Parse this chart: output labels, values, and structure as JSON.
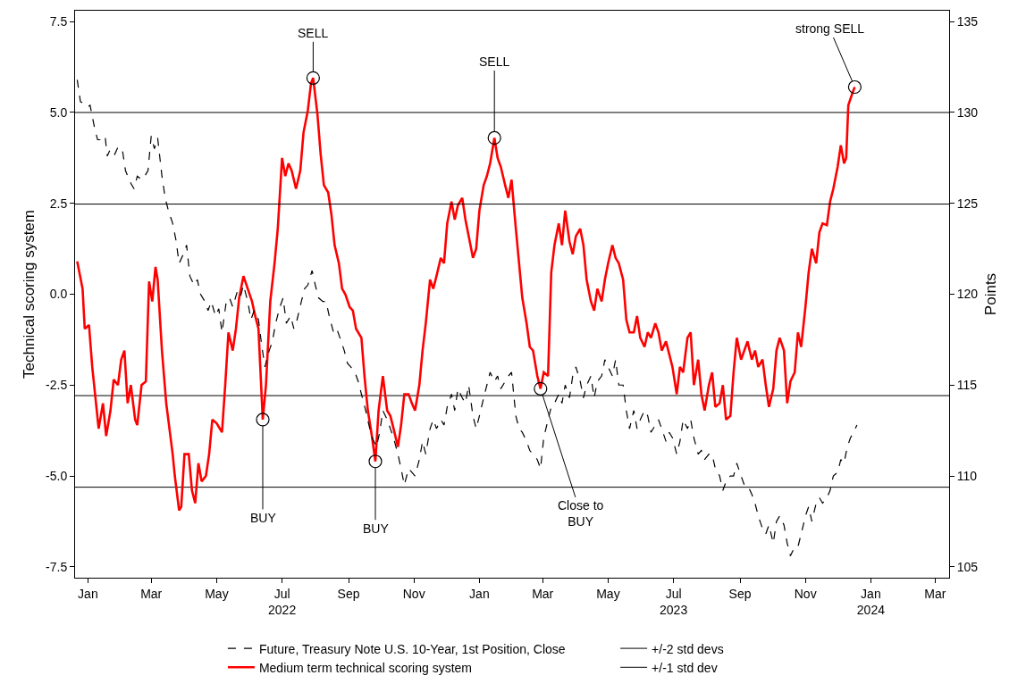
{
  "chart_data": {
    "type": "line",
    "ylabel": "Technical scoring system",
    "y2label": "Points",
    "xlim": [
      "2021-12-20",
      "2024-03-14"
    ],
    "xticks": [
      {
        "value": "2022-01-01",
        "label": "Jan"
      },
      {
        "value": "2022-03-01",
        "label": "Mar"
      },
      {
        "value": "2022-05-01",
        "label": "May"
      },
      {
        "value": "2022-07-01",
        "label": "Jul\n2022"
      },
      {
        "value": "2022-09-01",
        "label": "Sep"
      },
      {
        "value": "2022-11-01",
        "label": "Nov"
      },
      {
        "value": "2023-01-01",
        "label": "Jan"
      },
      {
        "value": "2023-03-01",
        "label": "Mar"
      },
      {
        "value": "2023-05-01",
        "label": "May"
      },
      {
        "value": "2023-07-01",
        "label": "Jul\n2023"
      },
      {
        "value": "2023-09-01",
        "label": "Sep"
      },
      {
        "value": "2023-11-01",
        "label": "Nov"
      },
      {
        "value": "2024-01-01",
        "label": "Jan\n2024"
      },
      {
        "value": "2024-03-01",
        "label": "Mar"
      }
    ],
    "ylim": [
      -7.8,
      7.8
    ],
    "yticks": [
      {
        "value": -7.5,
        "label": "-7.5"
      },
      {
        "value": -5,
        "label": "-5.0"
      },
      {
        "value": -2.5,
        "label": "-2.5"
      },
      {
        "value": 0,
        "label": "0.0"
      },
      {
        "value": 2.5,
        "label": "2.5"
      },
      {
        "value": 5,
        "label": "5.0"
      },
      {
        "value": 7.5,
        "label": "7.5"
      }
    ],
    "y2lim": [
      104.4,
      135.6
    ],
    "y2ticks": [
      105,
      110,
      115,
      120,
      125,
      130,
      135
    ],
    "grid": false,
    "legend": "bottom",
    "series": [
      {
        "name": "Future, Treasury Note U.S. 10-Year, 1st Position, Close",
        "color": "#000000",
        "axis": "y2",
        "line_style": "dashed",
        "x": [
          "2021-12-22",
          "2021-12-25",
          "2021-12-28",
          "2022-01-01",
          "2022-01-03",
          "2022-01-07",
          "2022-01-10",
          "2022-01-13",
          "2022-01-17",
          "2022-01-19",
          "2022-01-22",
          "2022-01-26",
          "2022-01-29",
          "2022-02-02",
          "2022-02-05",
          "2022-02-10",
          "2022-02-13",
          "2022-02-16",
          "2022-02-20",
          "2022-02-23",
          "2022-02-26",
          "2022-03-01",
          "2022-03-04",
          "2022-03-07",
          "2022-03-11",
          "2022-03-14",
          "2022-03-17",
          "2022-03-21",
          "2022-03-24",
          "2022-03-27",
          "2022-03-31",
          "2022-04-03",
          "2022-04-06",
          "2022-04-10",
          "2022-04-13",
          "2022-04-16",
          "2022-04-20",
          "2022-04-23",
          "2022-04-26",
          "2022-04-30",
          "2022-05-03",
          "2022-05-06",
          "2022-05-10",
          "2022-05-13",
          "2022-05-16",
          "2022-05-20",
          "2022-05-23",
          "2022-05-26",
          "2022-05-30",
          "2022-06-02",
          "2022-06-05",
          "2022-06-09",
          "2022-06-12",
          "2022-06-15",
          "2022-06-19",
          "2022-06-22",
          "2022-06-25",
          "2022-06-29",
          "2022-07-02",
          "2022-07-05",
          "2022-07-09",
          "2022-07-12",
          "2022-07-15",
          "2022-07-19",
          "2022-07-22",
          "2022-07-25",
          "2022-07-29",
          "2022-08-01",
          "2022-08-04",
          "2022-08-08",
          "2022-08-11",
          "2022-08-14",
          "2022-08-18",
          "2022-08-21",
          "2022-08-24",
          "2022-08-28",
          "2022-08-31",
          "2022-09-03",
          "2022-09-07",
          "2022-09-10",
          "2022-09-13",
          "2022-09-17",
          "2022-09-20",
          "2022-09-23",
          "2022-09-27",
          "2022-09-30",
          "2022-10-03",
          "2022-10-07",
          "2022-10-10",
          "2022-10-13",
          "2022-10-17",
          "2022-10-20",
          "2022-10-23",
          "2022-10-27",
          "2022-10-30",
          "2022-11-02",
          "2022-11-06",
          "2022-11-09",
          "2022-11-12",
          "2022-11-16",
          "2022-11-19",
          "2022-11-22",
          "2022-11-26",
          "2022-11-29",
          "2022-12-02",
          "2022-12-06",
          "2022-12-09",
          "2022-12-12",
          "2022-12-16",
          "2022-12-19",
          "2022-12-22",
          "2022-12-26",
          "2022-12-29",
          "2023-01-01",
          "2023-01-05",
          "2023-01-08",
          "2023-01-11",
          "2023-01-15",
          "2023-01-18",
          "2023-01-21",
          "2023-01-25",
          "2023-01-28",
          "2023-01-31",
          "2023-02-04",
          "2023-02-07",
          "2023-02-10",
          "2023-02-14",
          "2023-02-17",
          "2023-02-20",
          "2023-02-24",
          "2023-02-27",
          "2023-03-02",
          "2023-03-06",
          "2023-03-09",
          "2023-03-12",
          "2023-03-16",
          "2023-03-19",
          "2023-03-22",
          "2023-03-26",
          "2023-03-29",
          "2023-04-01",
          "2023-04-05",
          "2023-04-08",
          "2023-04-11",
          "2023-04-15",
          "2023-04-18",
          "2023-04-21",
          "2023-04-25",
          "2023-04-28",
          "2023-05-01",
          "2023-05-05",
          "2023-05-08",
          "2023-05-11",
          "2023-05-15",
          "2023-05-18",
          "2023-05-21",
          "2023-05-25",
          "2023-05-28",
          "2023-05-31",
          "2023-06-04",
          "2023-06-07",
          "2023-06-10",
          "2023-06-14",
          "2023-06-17",
          "2023-06-20",
          "2023-06-24",
          "2023-06-27",
          "2023-06-30",
          "2023-07-04",
          "2023-07-07",
          "2023-07-10",
          "2023-07-14",
          "2023-07-17",
          "2023-07-20",
          "2023-07-24",
          "2023-07-27",
          "2023-07-30",
          "2023-08-03",
          "2023-08-06",
          "2023-08-09",
          "2023-08-13",
          "2023-08-16",
          "2023-08-19",
          "2023-08-23",
          "2023-08-26",
          "2023-08-29",
          "2023-09-02",
          "2023-09-05",
          "2023-09-08",
          "2023-09-12",
          "2023-09-15",
          "2023-09-18",
          "2023-09-22",
          "2023-09-25",
          "2023-09-28",
          "2023-10-02",
          "2023-10-05",
          "2023-10-08",
          "2023-10-12",
          "2023-10-15",
          "2023-10-18",
          "2023-10-22",
          "2023-10-25",
          "2023-10-28",
          "2023-11-01",
          "2023-11-04",
          "2023-11-07",
          "2023-11-11",
          "2023-11-14",
          "2023-11-17",
          "2023-11-21",
          "2023-11-24",
          "2023-11-27",
          "2023-12-01",
          "2023-12-04",
          "2023-12-07",
          "2023-12-10",
          "2023-12-13",
          "2023-12-16",
          "2023-12-19"
        ],
        "values": [
          131.8,
          130.6,
          130.5,
          130.3,
          130.4,
          129.2,
          128.5,
          128.5,
          128.7,
          127.6,
          128.0,
          127.7,
          128.1,
          128.0,
          126.8,
          126.1,
          125.8,
          126.5,
          126.3,
          126.5,
          126.8,
          128.7,
          128.0,
          128.6,
          126.5,
          125.3,
          124.6,
          123.9,
          123.0,
          121.7,
          122.2,
          122.7,
          121.0,
          120.5,
          120.8,
          120.0,
          119.6,
          119.1,
          119.6,
          118.8,
          119.2,
          117.9,
          119.6,
          119.8,
          119.3,
          120.1,
          119.8,
          120.5,
          119.6,
          118.6,
          119.1,
          118.6,
          117.2,
          116.0,
          116.9,
          117.4,
          118.4,
          119.3,
          119.8,
          118.4,
          118.8,
          118.1,
          118.6,
          119.6,
          120.3,
          120.5,
          121.3,
          120.5,
          119.8,
          119.6,
          119.6,
          118.8,
          117.9,
          118.1,
          117.6,
          116.9,
          116.2,
          116.0,
          115.7,
          115.2,
          114.5,
          113.6,
          112.8,
          112.1,
          111.6,
          112.4,
          113.6,
          113.1,
          112.6,
          112.1,
          111.2,
          110.4,
          109.5,
          110.4,
          110.2,
          110.0,
          110.9,
          111.9,
          111.2,
          112.6,
          113.1,
          112.6,
          113.1,
          112.8,
          113.8,
          114.5,
          113.6,
          114.8,
          114.3,
          114.0,
          115.0,
          113.3,
          112.6,
          113.3,
          114.3,
          115.0,
          115.7,
          115.2,
          115.5,
          114.8,
          115.2,
          115.5,
          115.7,
          113.3,
          112.6,
          112.4,
          111.9,
          111.4,
          111.2,
          110.9,
          110.4,
          112.1,
          113.1,
          113.8,
          114.0,
          114.5,
          114.0,
          115.0,
          114.3,
          115.5,
          116.0,
          115.2,
          114.3,
          115.0,
          115.5,
          114.3,
          115.2,
          115.5,
          116.4,
          116.0,
          115.5,
          116.4,
          115.0,
          115.0,
          113.6,
          112.6,
          113.6,
          112.6,
          113.1,
          113.6,
          113.3,
          112.4,
          112.8,
          113.1,
          112.6,
          111.9,
          112.4,
          112.1,
          111.2,
          111.9,
          113.1,
          112.6,
          113.1,
          112.1,
          111.2,
          111.4,
          110.9,
          111.2,
          111.2,
          110.4,
          110.0,
          109.2,
          109.7,
          110.0,
          110.0,
          110.7,
          110.0,
          109.5,
          109.5,
          109.0,
          108.5,
          107.8,
          107.1,
          106.8,
          107.3,
          106.3,
          107.5,
          107.8,
          107.3,
          106.3,
          105.6,
          106.1,
          106.1,
          106.8,
          107.8,
          108.3,
          107.5,
          108.5,
          108.8,
          108.5,
          108.8,
          109.2,
          110.0,
          110.2,
          110.9,
          110.7,
          111.6,
          112.1,
          112.4,
          112.8
        ]
      },
      {
        "name": "Medium term technical scoring system",
        "color": "#ff0000",
        "line_style": "solid",
        "x": [
          "2021-12-22",
          "2021-12-27",
          "2021-12-29",
          "2022-01-02",
          "2022-01-05",
          "2022-01-11",
          "2022-01-15",
          "2022-01-18",
          "2022-01-22",
          "2022-01-25",
          "2022-01-29",
          "2022-02-01",
          "2022-02-04",
          "2022-02-07",
          "2022-02-10",
          "2022-02-14",
          "2022-02-16",
          "2022-02-20",
          "2022-02-24",
          "2022-02-27",
          "2022-03-02",
          "2022-03-05",
          "2022-03-07",
          "2022-03-11",
          "2022-03-15",
          "2022-03-18",
          "2022-03-21",
          "2022-03-23",
          "2022-03-27",
          "2022-03-29",
          "2022-04-01",
          "2022-04-05",
          "2022-04-08",
          "2022-04-11",
          "2022-04-14",
          "2022-04-17",
          "2022-04-21",
          "2022-04-24",
          "2022-04-27",
          "2022-05-01",
          "2022-05-06",
          "2022-05-09",
          "2022-05-12",
          "2022-05-16",
          "2022-05-19",
          "2022-05-22",
          "2022-05-26",
          "2022-05-30",
          "2022-06-03",
          "2022-06-06",
          "2022-06-09",
          "2022-06-13",
          "2022-06-16",
          "2022-06-20",
          "2022-06-24",
          "2022-06-27",
          "2022-07-01",
          "2022-07-04",
          "2022-07-07",
          "2022-07-10",
          "2022-07-14",
          "2022-07-18",
          "2022-07-21",
          "2022-07-25",
          "2022-07-28",
          "2022-07-30",
          "2022-08-03",
          "2022-08-06",
          "2022-08-09",
          "2022-08-13",
          "2022-08-16",
          "2022-08-19",
          "2022-08-23",
          "2022-08-26",
          "2022-08-29",
          "2022-09-02",
          "2022-09-05",
          "2022-09-08",
          "2022-09-13",
          "2022-09-16",
          "2022-09-19",
          "2022-09-23",
          "2022-09-26",
          "2022-09-29",
          "2022-10-03",
          "2022-10-07",
          "2022-10-10",
          "2022-10-13",
          "2022-10-17",
          "2022-10-20",
          "2022-10-23",
          "2022-10-27",
          "2022-10-30",
          "2022-11-02",
          "2022-11-06",
          "2022-11-09",
          "2022-11-12",
          "2022-11-16",
          "2022-11-19",
          "2022-11-22",
          "2022-11-26",
          "2022-11-29",
          "2022-12-02",
          "2022-12-06",
          "2022-12-09",
          "2022-12-12",
          "2022-12-16",
          "2022-12-19",
          "2022-12-22",
          "2022-12-26",
          "2022-12-29",
          "2023-01-01",
          "2023-01-05",
          "2023-01-08",
          "2023-01-11",
          "2023-01-15",
          "2023-01-18",
          "2023-01-21",
          "2023-01-25",
          "2023-01-28",
          "2023-01-31",
          "2023-02-04",
          "2023-02-07",
          "2023-02-10",
          "2023-02-14",
          "2023-02-17",
          "2023-02-20",
          "2023-02-24",
          "2023-02-27",
          "2023-03-02",
          "2023-03-06",
          "2023-03-09",
          "2023-03-12",
          "2023-03-16",
          "2023-03-19",
          "2023-03-22",
          "2023-03-26",
          "2023-03-29",
          "2023-04-01",
          "2023-04-05",
          "2023-04-08",
          "2023-04-11",
          "2023-04-15",
          "2023-04-18",
          "2023-04-21",
          "2023-04-25",
          "2023-04-28",
          "2023-05-01",
          "2023-05-05",
          "2023-05-08",
          "2023-05-11",
          "2023-05-15",
          "2023-05-18",
          "2023-05-21",
          "2023-05-25",
          "2023-05-28",
          "2023-05-31",
          "2023-06-04",
          "2023-06-07",
          "2023-06-10",
          "2023-06-14",
          "2023-06-17",
          "2023-06-20",
          "2023-06-24",
          "2023-06-27",
          "2023-06-30",
          "2023-07-04",
          "2023-07-07",
          "2023-07-10",
          "2023-07-14",
          "2023-07-17",
          "2023-07-20",
          "2023-07-24",
          "2023-07-27",
          "2023-07-30",
          "2023-08-03",
          "2023-08-06",
          "2023-08-09",
          "2023-08-13",
          "2023-08-16",
          "2023-08-19",
          "2023-08-23",
          "2023-08-26",
          "2023-08-29",
          "2023-09-02",
          "2023-09-05",
          "2023-09-08",
          "2023-09-12",
          "2023-09-15",
          "2023-09-18",
          "2023-09-22",
          "2023-09-25",
          "2023-09-28",
          "2023-10-02",
          "2023-10-05",
          "2023-10-08",
          "2023-10-12",
          "2023-10-15",
          "2023-10-18",
          "2023-10-22",
          "2023-10-25",
          "2023-10-28",
          "2023-11-01",
          "2023-11-04",
          "2023-11-07",
          "2023-11-11",
          "2023-11-14",
          "2023-11-17",
          "2023-11-21",
          "2023-11-24",
          "2023-11-27",
          "2023-12-01",
          "2023-12-04",
          "2023-12-07",
          "2023-12-09",
          "2023-12-11",
          "2023-12-15",
          "2023-12-17"
        ],
        "values": [
          0.9,
          0.15,
          -0.95,
          -0.85,
          -2.0,
          -3.7,
          -3.0,
          -3.9,
          -3.2,
          -2.35,
          -2.5,
          -1.8,
          -1.55,
          -3.0,
          -2.5,
          -3.45,
          -3.6,
          -2.5,
          -2.4,
          0.35,
          -0.2,
          0.75,
          0.4,
          -1.55,
          -3.0,
          -3.7,
          -4.4,
          -5.0,
          -5.95,
          -5.85,
          -4.4,
          -4.4,
          -5.4,
          -5.75,
          -4.65,
          -5.15,
          -5.0,
          -4.4,
          -3.45,
          -3.55,
          -3.8,
          -2.5,
          -1.05,
          -1.55,
          -0.95,
          -0.1,
          0.5,
          0.15,
          -0.2,
          -0.6,
          -0.95,
          -3.45,
          -2.5,
          -0.2,
          0.85,
          1.8,
          3.75,
          3.25,
          3.6,
          3.4,
          2.9,
          3.4,
          4.45,
          5.05,
          5.8,
          5.95,
          4.95,
          3.85,
          3.0,
          2.8,
          2.2,
          1.35,
          0.85,
          0.15,
          0.0,
          -0.35,
          -0.45,
          -0.95,
          -1.2,
          -2.3,
          -3.2,
          -3.95,
          -4.6,
          -3.2,
          -2.25,
          -3.2,
          -3.35,
          -3.7,
          -4.2,
          -3.6,
          -2.75,
          -2.75,
          -3.0,
          -3.2,
          -2.5,
          -1.55,
          -0.8,
          0.4,
          0.15,
          0.5,
          1.0,
          0.85,
          1.95,
          2.55,
          2.05,
          2.45,
          2.65,
          2.05,
          1.6,
          1.0,
          1.25,
          2.3,
          3.0,
          3.25,
          3.6,
          4.3,
          3.75,
          3.5,
          3.0,
          2.65,
          3.15,
          1.8,
          0.85,
          -0.1,
          -0.8,
          -1.45,
          -1.55,
          -2.25,
          -2.6,
          -2.15,
          -2.25,
          0.6,
          1.35,
          1.95,
          1.35,
          2.3,
          1.45,
          1.1,
          1.6,
          1.8,
          1.35,
          0.4,
          -0.2,
          -0.45,
          0.15,
          -0.2,
          0.4,
          0.85,
          1.35,
          1.0,
          0.85,
          0.4,
          -0.7,
          -1.05,
          -1.05,
          -0.6,
          -1.2,
          -1.45,
          -1.05,
          -1.2,
          -0.8,
          -1.05,
          -1.55,
          -1.3,
          -1.65,
          -2.0,
          -2.75,
          -2.0,
          -2.15,
          -1.2,
          -1.05,
          -2.5,
          -1.8,
          -2.75,
          -3.2,
          -2.5,
          -2.15,
          -3.1,
          -3.0,
          -2.5,
          -3.45,
          -3.35,
          -2.15,
          -1.2,
          -1.8,
          -1.55,
          -1.3,
          -1.8,
          -1.55,
          -2.0,
          -1.8,
          -2.5,
          -3.1,
          -2.6,
          -1.55,
          -1.2,
          -1.55,
          -3.0,
          -2.4,
          -2.15,
          -1.05,
          -1.45,
          -0.35,
          0.6,
          1.25,
          0.85,
          1.7,
          1.95,
          1.9,
          2.55,
          2.9,
          3.5,
          4.1,
          3.6,
          3.75,
          5.2,
          5.55,
          5.7
        ]
      }
    ],
    "ref_lines": [
      {
        "axis": "y",
        "value": 5.0,
        "label": "+/-2 std devs",
        "color": "#000000"
      },
      {
        "axis": "y",
        "value": 2.48,
        "label": "+/-1 std dev",
        "color": "#000000"
      },
      {
        "axis": "y",
        "value": -2.79,
        "color": "#000000"
      },
      {
        "axis": "y",
        "value": -5.31,
        "color": "#000000"
      }
    ],
    "annotations": [
      {
        "text": "BUY",
        "x": "2022-06-13",
        "y": -3.45
      },
      {
        "text": "SELL",
        "x": "2022-07-30",
        "y": 5.95
      },
      {
        "text": "BUY",
        "x": "2022-09-26",
        "y": -4.6
      },
      {
        "text": "SELL",
        "x": "2023-01-15",
        "y": 4.3
      },
      {
        "text": "Close to\nBUY",
        "x": "2023-02-27",
        "y": -2.6
      },
      {
        "text": "strong SELL",
        "x": "2023-12-17",
        "y": 5.7
      }
    ]
  }
}
